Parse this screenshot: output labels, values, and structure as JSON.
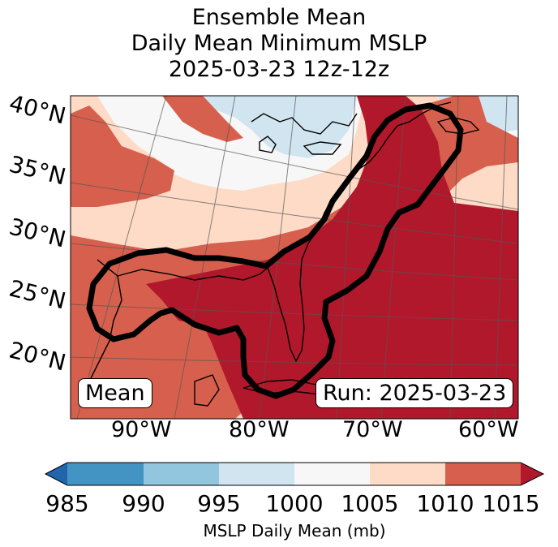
{
  "title": {
    "line1": "Ensemble Mean",
    "line2": "Daily Mean Minimum MSLP",
    "line3": "2025-03-23 12z-12z"
  },
  "map": {
    "lat_labels": [
      "40°N",
      "35°N",
      "30°N",
      "25°N",
      "20°N"
    ],
    "lon_labels": [
      "90°W",
      "80°W",
      "70°W",
      "60°W"
    ],
    "mean_box": "Mean",
    "run_box": "Run: 2025-03-23",
    "contour_color": "#000000"
  },
  "colorbar": {
    "label": "MSLP Daily Mean (mb)",
    "ticks": [
      "985",
      "990",
      "995",
      "1000",
      "1005",
      "1010",
      "1015"
    ],
    "colors": {
      "below_985": "#2166ac",
      "985_990": "#4393c3",
      "990_995": "#92c5de",
      "995_1000": "#d1e5f0",
      "1000_1005": "#f7f7f7",
      "1005_1010": "#fddbc7",
      "1010_1015": "#d6604d",
      "above_1015": "#b2182b"
    }
  }
}
